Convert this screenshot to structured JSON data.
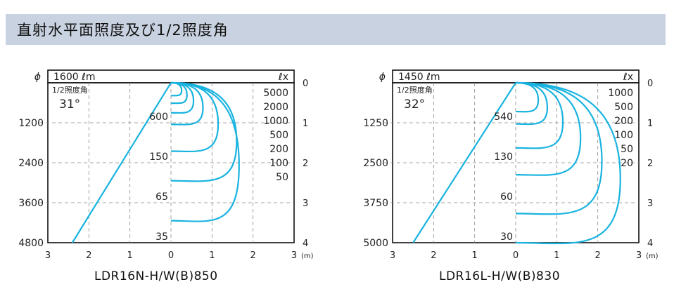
{
  "header": {
    "title": "直射水平面照度及び1/2照度角"
  },
  "chart_data": [
    {
      "type": "line",
      "model": "LDR16N-H/W(B)850",
      "phi_symbol": "ϕ",
      "flux": "1600 ℓm",
      "lux_unit": "ℓx",
      "half_angle_label": "1/2照度角",
      "half_angle": "31°",
      "beam_half_angle_deg": 31,
      "xlabel": "(m)",
      "x_ticks": [
        "3",
        "2",
        "1",
        "0",
        "1",
        "2",
        "3"
      ],
      "xlim": [
        -3,
        3
      ],
      "ylim": [
        0,
        4
      ],
      "y_ticks_right": [
        "0",
        "1",
        "2",
        "3",
        "4"
      ],
      "y_ticks_left": [
        "1200",
        "2400",
        "3600",
        "4800"
      ],
      "center_lux": [
        {
          "label": "600",
          "depth": 1
        },
        {
          "label": "150",
          "depth": 2
        },
        {
          "label": "65",
          "depth": 3
        },
        {
          "label": "35",
          "depth": 4
        }
      ],
      "iso_lux_labels": [
        "5000",
        "2000",
        "1000",
        "500",
        "200",
        "100",
        "50"
      ],
      "iso_lux_curves": [
        {
          "lux": 5000,
          "depth": 0.32,
          "max_x": 0.26
        },
        {
          "lux": 2000,
          "depth": 0.51,
          "max_x": 0.39
        },
        {
          "lux": 1000,
          "depth": 0.75,
          "max_x": 0.55
        },
        {
          "lux": 500,
          "depth": 1.04,
          "max_x": 0.78
        },
        {
          "lux": 200,
          "depth": 1.71,
          "max_x": 1.15
        },
        {
          "lux": 100,
          "depth": 2.45,
          "max_x": 1.6
        },
        {
          "lux": 50,
          "depth": 3.45,
          "max_x": 1.66
        }
      ]
    },
    {
      "type": "line",
      "model": "LDR16L-H/W(B)830",
      "phi_symbol": "ϕ",
      "flux": "1450 ℓm",
      "lux_unit": "ℓx",
      "half_angle_label": "1/2照度角",
      "half_angle": "32°",
      "beam_half_angle_deg": 32,
      "xlabel": "(m)",
      "x_ticks": [
        "3",
        "2",
        "1",
        "0",
        "1",
        "2",
        "3"
      ],
      "xlim": [
        -3,
        3
      ],
      "ylim": [
        0,
        4
      ],
      "y_ticks_right": [
        "0",
        "1",
        "2",
        "3",
        "4"
      ],
      "y_ticks_left": [
        "1250",
        "2500",
        "3750",
        "5000"
      ],
      "center_lux": [
        {
          "label": "540",
          "depth": 1
        },
        {
          "label": "130",
          "depth": 2
        },
        {
          "label": "60",
          "depth": 3
        },
        {
          "label": "30",
          "depth": 4
        }
      ],
      "iso_lux_labels": [
        "1000",
        "500",
        "200",
        "100",
        "50",
        "20"
      ],
      "iso_lux_curves": [
        {
          "lux": 1000,
          "depth": 0.72,
          "max_x": 0.55
        },
        {
          "lux": 500,
          "depth": 1.03,
          "max_x": 0.77
        },
        {
          "lux": 200,
          "depth": 1.63,
          "max_x": 1.15
        },
        {
          "lux": 100,
          "depth": 2.3,
          "max_x": 1.58
        },
        {
          "lux": 50,
          "depth": 3.27,
          "max_x": 2.1
        },
        {
          "lux": 20,
          "depth": 4.0,
          "max_x": 2.55
        }
      ]
    }
  ]
}
